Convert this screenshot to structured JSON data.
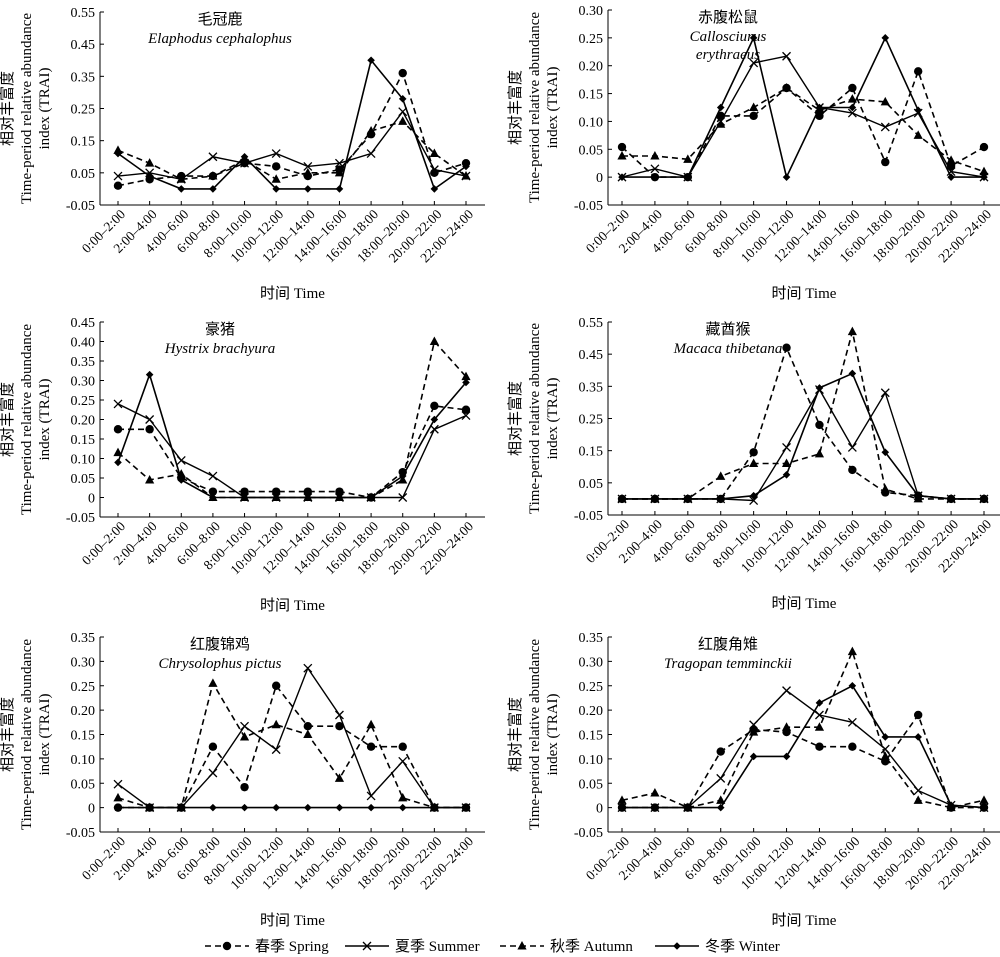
{
  "figure": {
    "categories": [
      "0:00–2:00",
      "2:00–4:00",
      "4:00–6:00",
      "6:00–8:00",
      "8:00–10:00",
      "10:00–12:00",
      "12:00–14:00",
      "14:00–16:00",
      "16:00–18:00",
      "18:00–20:00",
      "20:00–22:00",
      "22:00–24:00"
    ],
    "xlabel": "时间 Time",
    "ylabel_cn": "相对丰富度",
    "ylabel_en1": "Time-period relative abundance",
    "ylabel_en2": "index (TRAI)",
    "legend": [
      {
        "label": "春季 Spring",
        "dash": "6,4",
        "marker": "circle"
      },
      {
        "label": "夏季 Summer",
        "dash": "",
        "marker": "x"
      },
      {
        "label": "秋季 Autumn",
        "dash": "6,4",
        "marker": "triangle"
      },
      {
        "label": "冬季 Winter",
        "dash": "",
        "marker": "diamond"
      }
    ]
  },
  "chart_data": [
    {
      "type": "line",
      "title_cn": "毛冠鹿",
      "title_latin": [
        "Elaphodus cephalophus"
      ],
      "ylim": [
        -0.05,
        0.55
      ],
      "yticks": [
        "-0.05",
        "0.05",
        "0.15",
        "0.25",
        "0.35",
        "0.45",
        "0.55"
      ],
      "series": [
        {
          "name": "春季 Spring",
          "values": [
            0.01,
            0.03,
            0.04,
            0.04,
            0.08,
            0.07,
            0.04,
            0.06,
            0.17,
            0.36,
            0.05,
            0.08
          ]
        },
        {
          "name": "夏季 Summer",
          "values": [
            0.04,
            0.05,
            0.03,
            0.1,
            0.08,
            0.11,
            0.07,
            0.08,
            0.11,
            0.24,
            0.06,
            0.04
          ]
        },
        {
          "name": "秋季 Autumn",
          "values": [
            0.12,
            0.08,
            0.03,
            0.04,
            0.09,
            0.03,
            0.05,
            0.05,
            0.18,
            0.21,
            0.11,
            0.04
          ]
        },
        {
          "name": "冬季 Winter",
          "values": [
            0.11,
            0.04,
            0.0,
            0.0,
            0.1,
            0.0,
            0.0,
            0.0,
            0.4,
            0.28,
            0.0,
            0.07
          ]
        }
      ]
    },
    {
      "type": "line",
      "title_cn": "赤腹松鼠",
      "title_latin": [
        "Callosciurus",
        "erythraeus"
      ],
      "ylim": [
        -0.05,
        0.3
      ],
      "yticks": [
        "-0.05",
        "0",
        "0.05",
        "0.10",
        "0.15",
        "0.20",
        "0.25",
        "0.30"
      ],
      "series": [
        {
          "name": "春季 Spring",
          "values": [
            0.054,
            0,
            0,
            0.11,
            0.11,
            0.16,
            0.11,
            0.16,
            0.027,
            0.19,
            0.02,
            0.054
          ]
        },
        {
          "name": "夏季 Summer",
          "values": [
            0,
            0.015,
            0,
            0.1,
            0.205,
            0.217,
            0.125,
            0.115,
            0.09,
            0.115,
            0.01,
            0
          ]
        },
        {
          "name": "秋季 Autumn",
          "values": [
            0.038,
            0.038,
            0.032,
            0.095,
            0.125,
            0.16,
            0.12,
            0.14,
            0.135,
            0.075,
            0.03,
            0.01
          ]
        },
        {
          "name": "冬季 Winter",
          "values": [
            0,
            0,
            0,
            0.125,
            0.25,
            0,
            0.125,
            0.125,
            0.25,
            0.12,
            0,
            0
          ]
        }
      ]
    },
    {
      "type": "line",
      "title_cn": "豪猪",
      "title_latin": [
        "Hystrix brachyura"
      ],
      "ylim": [
        -0.05,
        0.45
      ],
      "yticks": [
        "-0.05",
        "0",
        "0.05",
        "0.10",
        "0.15",
        "0.20",
        "0.25",
        "0.30",
        "0.35",
        "0.40",
        "0.45"
      ],
      "series": [
        {
          "name": "春季 Spring",
          "values": [
            0.175,
            0.175,
            0.05,
            0.015,
            0.015,
            0.015,
            0.015,
            0.015,
            0,
            0.065,
            0.235,
            0.225
          ]
        },
        {
          "name": "夏季 Summer",
          "values": [
            0.24,
            0.2,
            0.095,
            0.055,
            0,
            0,
            0,
            0,
            0,
            0,
            0.175,
            0.21
          ]
        },
        {
          "name": "秋季 Autumn",
          "values": [
            0.115,
            0.045,
            0.06,
            0,
            0,
            0,
            0,
            0,
            0,
            0.045,
            0.4,
            0.31
          ]
        },
        {
          "name": "冬季 Winter",
          "values": [
            0.09,
            0.315,
            0.045,
            0,
            0,
            0,
            0,
            0,
            0,
            0.055,
            0.2,
            0.295
          ]
        }
      ]
    },
    {
      "type": "line",
      "title_cn": "藏酋猴",
      "title_latin": [
        "Macaca thibetana"
      ],
      "ylim": [
        -0.05,
        0.55
      ],
      "yticks": [
        "-0.05",
        "0.05",
        "0.15",
        "0.25",
        "0.35",
        "0.45",
        "0.55"
      ],
      "series": [
        {
          "name": "春季 Spring",
          "values": [
            0,
            0,
            0,
            0,
            0.145,
            0.47,
            0.23,
            0.09,
            0.02,
            0.01,
            0,
            0
          ]
        },
        {
          "name": "夏季 Summer",
          "values": [
            0,
            0,
            0,
            0,
            -0.005,
            0.16,
            0.34,
            0.16,
            0.33,
            0.01,
            0,
            0
          ]
        },
        {
          "name": "秋季 Autumn",
          "values": [
            0,
            0,
            0,
            0.07,
            0.11,
            0.11,
            0.14,
            0.52,
            0.03,
            0,
            0,
            0
          ]
        },
        {
          "name": "冬季 Winter",
          "values": [
            0,
            0,
            0,
            0,
            0.01,
            0.075,
            0.345,
            0.39,
            0.145,
            0.01,
            0,
            0
          ]
        }
      ]
    },
    {
      "type": "line",
      "title_cn": "红腹锦鸡",
      "title_latin": [
        "Chrysolophus pictus"
      ],
      "ylim": [
        -0.05,
        0.35
      ],
      "yticks": [
        "-0.05",
        "0",
        "0.05",
        "0.10",
        "0.15",
        "0.20",
        "0.25",
        "0.30",
        "0.35"
      ],
      "series": [
        {
          "name": "春季 Spring",
          "values": [
            0,
            0,
            0,
            0.125,
            0.042,
            0.25,
            0.167,
            0.167,
            0.125,
            0.125,
            0,
            0
          ]
        },
        {
          "name": "夏季 Summer",
          "values": [
            0.048,
            0,
            0,
            0.071,
            0.167,
            0.119,
            0.286,
            0.19,
            0.024,
            0.095,
            0,
            0
          ]
        },
        {
          "name": "秋季 Autumn",
          "values": [
            0.02,
            0,
            0,
            0.255,
            0.145,
            0.17,
            0.15,
            0.06,
            0.17,
            0.02,
            0,
            0
          ]
        },
        {
          "name": "冬季 Winter",
          "values": [
            0,
            0,
            0,
            0,
            0,
            0,
            0,
            0,
            0,
            0,
            0,
            0
          ]
        }
      ]
    },
    {
      "type": "line",
      "title_cn": "红腹角雉",
      "title_latin": [
        "Tragopan temminckii"
      ],
      "ylim": [
        -0.05,
        0.35
      ],
      "yticks": [
        "-0.05",
        "0",
        "0.05",
        "0.10",
        "0.15",
        "0.20",
        "0.25",
        "0.30",
        "0.35"
      ],
      "series": [
        {
          "name": "春季 Spring",
          "values": [
            0,
            0,
            0,
            0.115,
            0.16,
            0.155,
            0.125,
            0.125,
            0.095,
            0.19,
            0,
            0
          ]
        },
        {
          "name": "夏季 Summer",
          "values": [
            0,
            0,
            0,
            0.06,
            0.17,
            0.24,
            0.19,
            0.175,
            0.12,
            0.035,
            0.005,
            0
          ]
        },
        {
          "name": "秋季 Autumn",
          "values": [
            0.015,
            0.03,
            0,
            0.015,
            0.155,
            0.165,
            0.165,
            0.32,
            0.105,
            0.015,
            0,
            0.015
          ]
        },
        {
          "name": "冬季 Winter",
          "values": [
            0,
            0,
            0,
            0,
            0.105,
            0.105,
            0.215,
            0.25,
            0.145,
            0.145,
            0.005,
            0
          ]
        }
      ]
    }
  ]
}
